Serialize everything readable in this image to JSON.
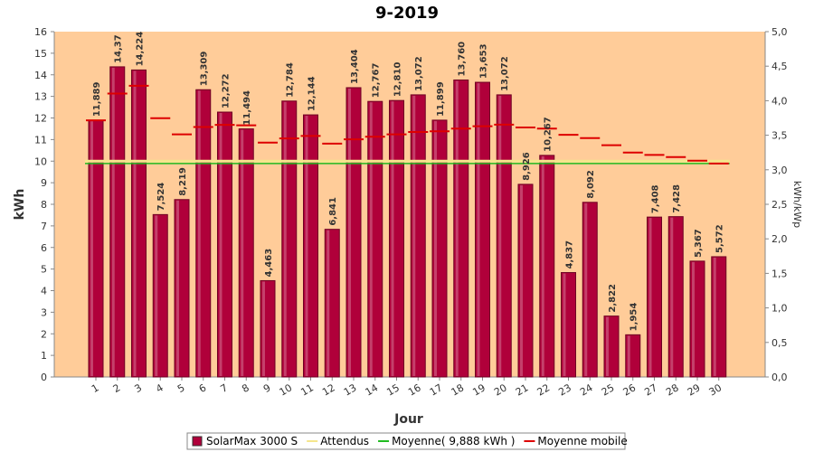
{
  "chart_data": {
    "type": "bar",
    "title": "9-2019",
    "xlabel": "Jour",
    "ylabel": "kWh",
    "y2label": "kWh/kWp",
    "ylim": [
      0,
      16
    ],
    "y2lim": [
      0,
      5
    ],
    "yticks": [
      0,
      1,
      2,
      3,
      4,
      5,
      6,
      7,
      8,
      9,
      10,
      11,
      12,
      13,
      14,
      15,
      16
    ],
    "y2ticks": [
      "0,0",
      "0,5",
      "1,0",
      "1,5",
      "2,0",
      "2,5",
      "3,0",
      "3,5",
      "4,0",
      "4,5",
      "5,0"
    ],
    "categories": [
      "1",
      "2",
      "3",
      "4",
      "5",
      "6",
      "7",
      "8",
      "9",
      "10",
      "11",
      "12",
      "13",
      "14",
      "15",
      "16",
      "17",
      "18",
      "19",
      "20",
      "21",
      "22",
      "23",
      "24",
      "25",
      "26",
      "27",
      "28",
      "29",
      "30"
    ],
    "series": [
      {
        "name": "SolarMax 3000 S",
        "type": "bar",
        "color": "#b0003a",
        "values": [
          11.889,
          14.37,
          14.224,
          7.524,
          8.219,
          13.309,
          12.272,
          11.494,
          4.463,
          12.784,
          12.144,
          6.841,
          13.404,
          12.767,
          12.81,
          13.072,
          11.899,
          13.76,
          13.653,
          13.072,
          8.926,
          10.267,
          4.837,
          8.092,
          2.822,
          1.954,
          7.408,
          7.428,
          5.367,
          5.572
        ],
        "labels": [
          "11,889",
          "14,37",
          "14,224",
          "7,524",
          "8,219",
          "13,309",
          "12,272",
          "11,494",
          "4,463",
          "12,784",
          "12,144",
          "6,841",
          "13,404",
          "12,767",
          "12,810",
          "13,072",
          "11,899",
          "13,760",
          "13,653",
          "13,072",
          "8,926",
          "10,267",
          "4,837",
          "8,092",
          "2,822",
          "1,954",
          "7,408",
          "7,428",
          "5,367",
          "5,572"
        ]
      },
      {
        "name": "Attendus",
        "type": "line",
        "color": "#f5e68c",
        "values": [
          10,
          10,
          10,
          10,
          10,
          10,
          10,
          10,
          10,
          10,
          10,
          10,
          10,
          10,
          10,
          10,
          10,
          10,
          10,
          10,
          10,
          10,
          10,
          10,
          10,
          10,
          10,
          10,
          10,
          10
        ]
      },
      {
        "name": "Moyenne( 9,888 kWh )",
        "type": "line",
        "color": "#22bb22",
        "values": [
          9.888,
          9.888,
          9.888,
          9.888,
          9.888,
          9.888,
          9.888,
          9.888,
          9.888,
          9.888,
          9.888,
          9.888,
          9.888,
          9.888,
          9.888,
          9.888,
          9.888,
          9.888,
          9.888,
          9.888,
          9.888,
          9.888,
          9.888,
          9.888,
          9.888,
          9.888,
          9.888,
          9.888,
          9.888,
          9.888
        ]
      },
      {
        "name": "Moyenne mobile",
        "type": "step",
        "color": "#dd0000",
        "values": [
          11.889,
          13.13,
          13.49,
          11.99,
          11.24,
          11.58,
          11.68,
          11.66,
          10.86,
          11.05,
          11.17,
          10.81,
          11.01,
          11.13,
          11.24,
          11.35,
          11.38,
          11.51,
          11.62,
          11.69,
          11.56,
          11.51,
          11.22,
          11.07,
          10.74,
          10.4,
          10.29,
          10.19,
          10.02,
          9.888
        ]
      }
    ],
    "grid": false,
    "legend": "bottom"
  }
}
